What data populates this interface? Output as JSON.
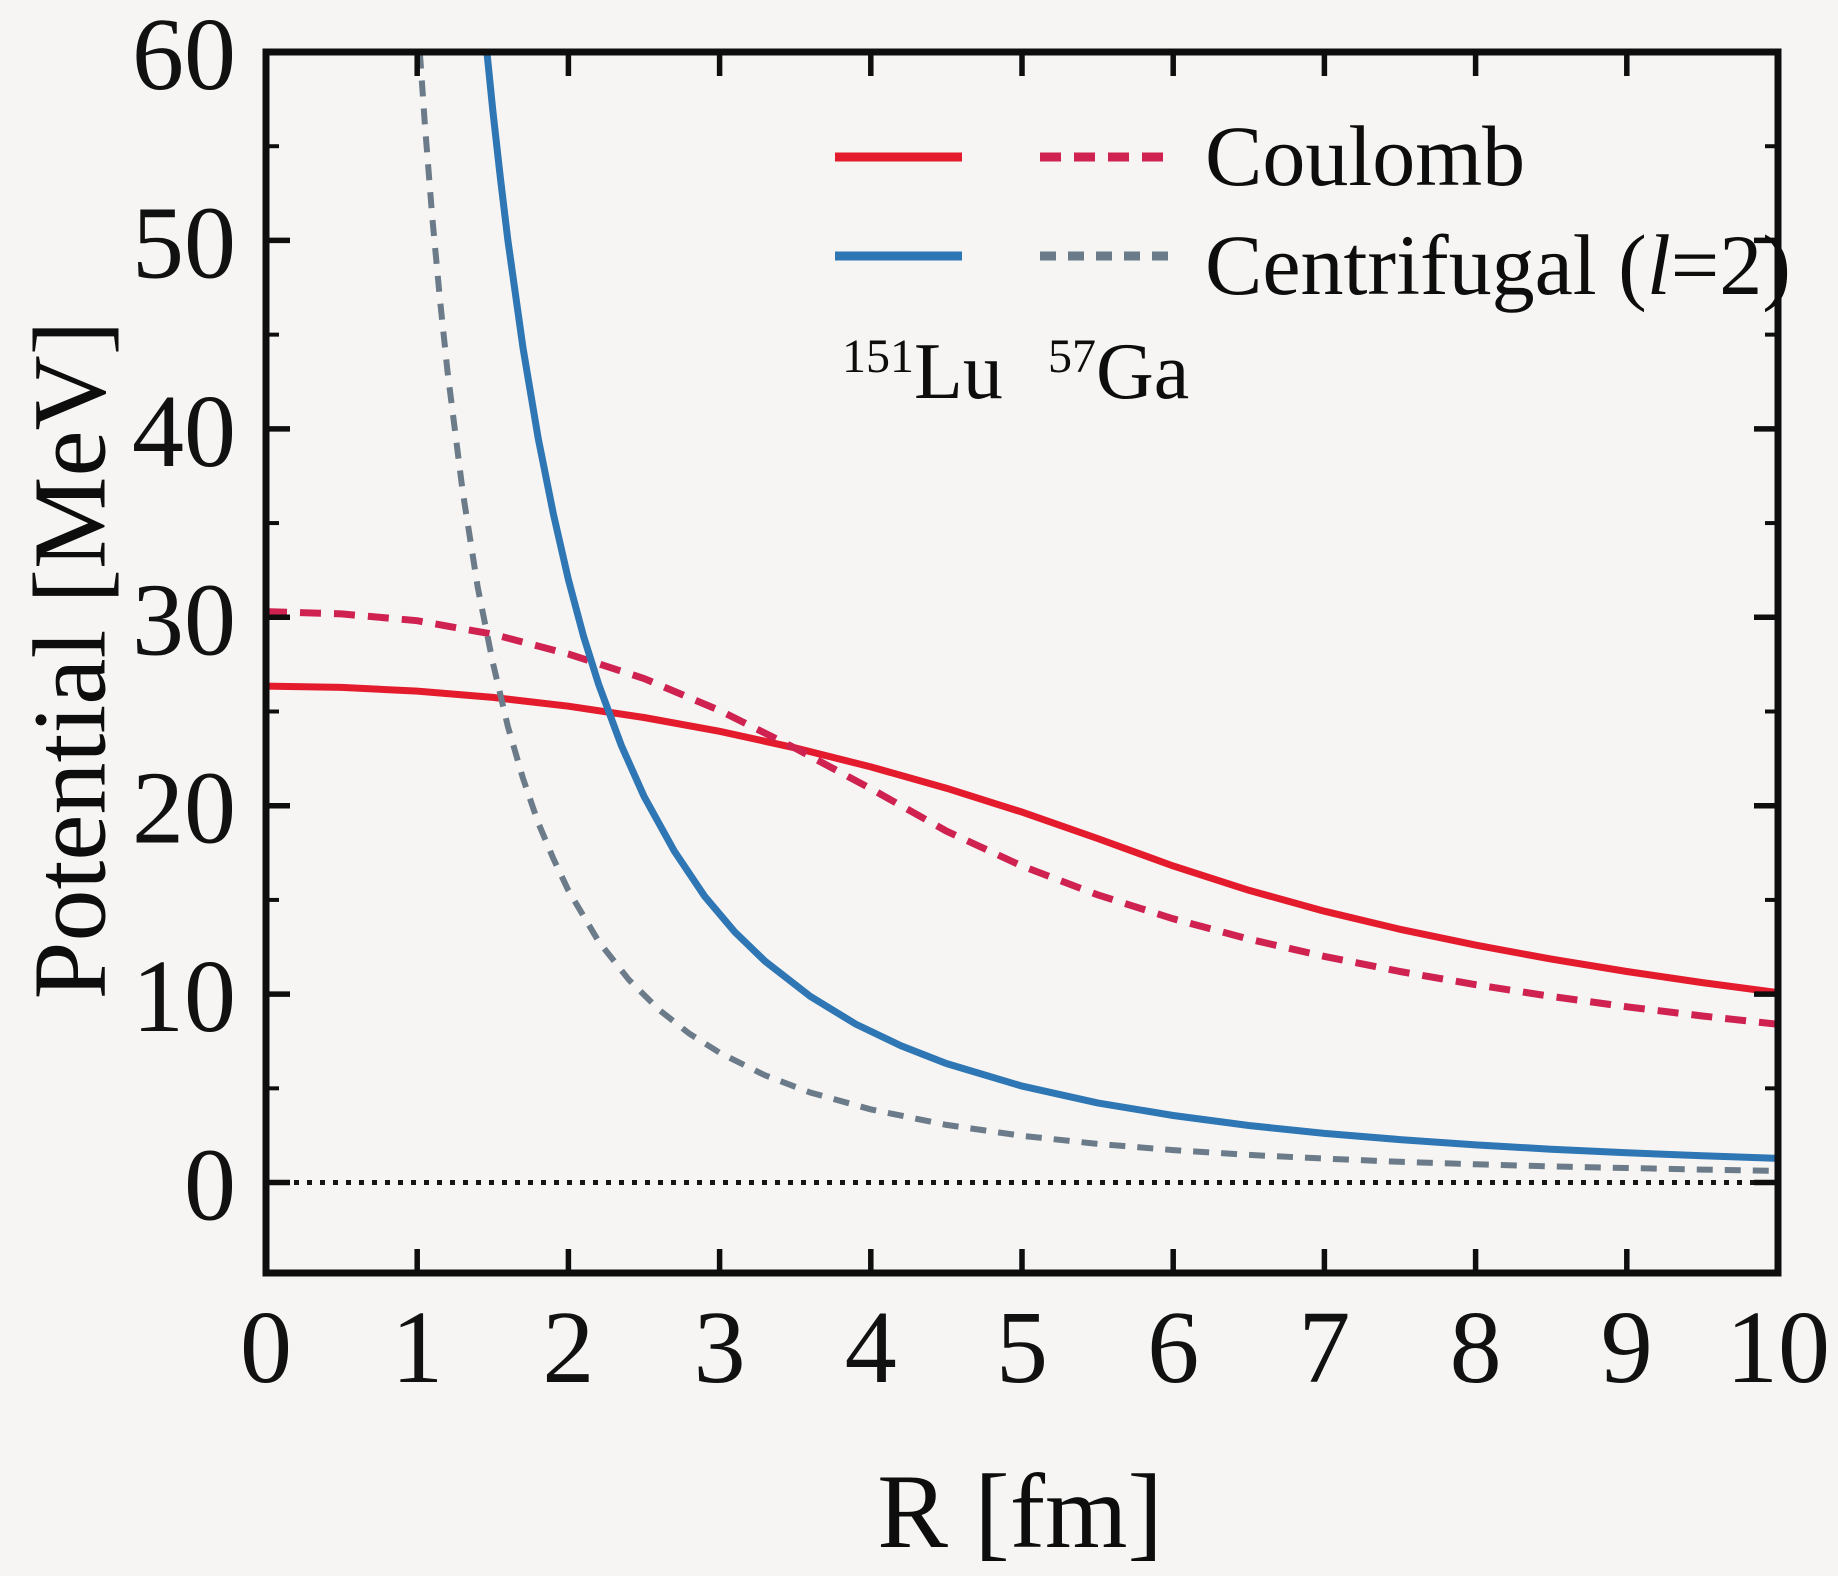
{
  "figure": {
    "background": "#f6f5f3",
    "frame_color": "#0e0e0e",
    "text_color": "#111111"
  },
  "legend": {
    "rows": [
      {
        "label": "Coulomb"
      },
      {
        "label_pre": "Centrifugal (",
        "label_italic": "l",
        "label_post": "=2)"
      }
    ],
    "columns": [
      {
        "mass": "151",
        "symbol": "Lu"
      },
      {
        "mass": "57",
        "symbol": "Ga"
      }
    ]
  },
  "chart_data": {
    "type": "line",
    "title": "",
    "xlabel": "R [fm]",
    "ylabel": "Potential [MeV]",
    "xlim": [
      0,
      10
    ],
    "ylim": [
      -4.8,
      60
    ],
    "x_ticks": [
      0,
      1,
      2,
      3,
      4,
      5,
      6,
      7,
      8,
      9,
      10
    ],
    "x_tick_labels": [
      "0",
      "1",
      "2",
      "3",
      "4",
      "5",
      "6",
      "7",
      "8",
      "9",
      "10"
    ],
    "y_ticks": [
      0,
      10,
      20,
      30,
      40,
      50,
      60
    ],
    "y_tick_labels": [
      "0",
      "10",
      "20",
      "30",
      "40",
      "50",
      "60"
    ],
    "y_minor_ticks": [
      5,
      15,
      25,
      35,
      45,
      55
    ],
    "grid": false,
    "legend_position": "top-right-inside",
    "reference_line": {
      "y": 0,
      "style": "dotted",
      "color": "#151515"
    },
    "series": [
      {
        "name": "Coulomb 151Lu",
        "group": "Coulomb",
        "isotope": "151Lu",
        "style": "solid",
        "color": "#e31b2c",
        "width": 7,
        "points": [
          [
            0,
            26.35
          ],
          [
            0.5,
            26.28
          ],
          [
            1,
            26.08
          ],
          [
            1.5,
            25.75
          ],
          [
            2,
            25.28
          ],
          [
            2.5,
            24.68
          ],
          [
            3,
            23.95
          ],
          [
            3.5,
            23.07
          ],
          [
            4,
            22.06
          ],
          [
            4.5,
            20.93
          ],
          [
            5,
            19.66
          ],
          [
            5.5,
            18.26
          ],
          [
            6,
            16.8
          ],
          [
            6.5,
            15.51
          ],
          [
            7,
            14.4
          ],
          [
            7.5,
            13.44
          ],
          [
            8,
            12.6
          ],
          [
            8.5,
            11.86
          ],
          [
            9,
            11.2
          ],
          [
            9.5,
            10.61
          ],
          [
            10,
            10.08
          ]
        ]
      },
      {
        "name": "Coulomb 57Ga",
        "group": "Coulomb",
        "isotope": "57Ga",
        "style": "dashed",
        "color": "#cf2251",
        "width": 7,
        "dash": [
          21,
          13
        ],
        "points": [
          [
            0,
            30.3
          ],
          [
            0.5,
            30.18
          ],
          [
            1,
            29.82
          ],
          [
            1.5,
            29.1
          ],
          [
            2,
            28.05
          ],
          [
            2.5,
            26.75
          ],
          [
            3,
            25.05
          ],
          [
            3.5,
            23.05
          ],
          [
            4,
            20.9
          ],
          [
            4.5,
            18.65
          ],
          [
            5,
            16.8
          ],
          [
            5.5,
            15.27
          ],
          [
            6,
            14.0
          ],
          [
            6.5,
            12.92
          ],
          [
            7,
            12.0
          ],
          [
            7.5,
            11.2
          ],
          [
            8,
            10.5
          ],
          [
            8.5,
            9.88
          ],
          [
            9,
            9.33
          ],
          [
            9.5,
            8.84
          ],
          [
            10,
            8.4
          ]
        ]
      },
      {
        "name": "Centrifugal (l=2) 151Lu",
        "group": "Centrifugal (l=2)",
        "isotope": "151Lu",
        "style": "solid",
        "color": "#2e76b4",
        "width": 7,
        "points": [
          [
            1.42,
            63.5
          ],
          [
            1.45,
            60.9
          ],
          [
            1.5,
            56.9
          ],
          [
            1.55,
            53.3
          ],
          [
            1.6,
            50.0
          ],
          [
            1.7,
            44.3
          ],
          [
            1.8,
            39.5
          ],
          [
            1.9,
            35.5
          ],
          [
            2.0,
            32.0
          ],
          [
            2.1,
            29.0
          ],
          [
            2.2,
            26.45
          ],
          [
            2.35,
            23.2
          ],
          [
            2.5,
            20.5
          ],
          [
            2.7,
            17.6
          ],
          [
            2.9,
            15.2
          ],
          [
            3.1,
            13.3
          ],
          [
            3.3,
            11.75
          ],
          [
            3.6,
            9.88
          ],
          [
            3.9,
            8.41
          ],
          [
            4.2,
            7.26
          ],
          [
            4.5,
            6.32
          ],
          [
            5,
            5.12
          ],
          [
            5.5,
            4.23
          ],
          [
            6,
            3.56
          ],
          [
            6.5,
            3.03
          ],
          [
            7,
            2.61
          ],
          [
            7.5,
            2.28
          ],
          [
            8,
            2.0
          ],
          [
            8.5,
            1.77
          ],
          [
            9,
            1.58
          ],
          [
            9.5,
            1.42
          ],
          [
            10,
            1.28
          ]
        ]
      },
      {
        "name": "Centrifugal (l=2) 57Ga",
        "group": "Centrifugal (l=2)",
        "isotope": "57Ga",
        "style": "dashed",
        "color": "#6b7b89",
        "width": 6,
        "dash": [
          16,
          12
        ],
        "points": [
          [
            0.97,
            65.9
          ],
          [
            1.0,
            62.0
          ],
          [
            1.05,
            56.2
          ],
          [
            1.1,
            51.2
          ],
          [
            1.15,
            46.9
          ],
          [
            1.2,
            43.1
          ],
          [
            1.3,
            36.7
          ],
          [
            1.4,
            31.6
          ],
          [
            1.5,
            27.6
          ],
          [
            1.6,
            24.2
          ],
          [
            1.7,
            21.45
          ],
          [
            1.8,
            19.1
          ],
          [
            1.9,
            17.2
          ],
          [
            2.0,
            15.5
          ],
          [
            2.2,
            12.8
          ],
          [
            2.4,
            10.76
          ],
          [
            2.6,
            9.17
          ],
          [
            2.8,
            7.9
          ],
          [
            3.0,
            6.89
          ],
          [
            3.3,
            5.69
          ],
          [
            3.6,
            4.78
          ],
          [
            4.0,
            3.88
          ],
          [
            4.5,
            3.06
          ],
          [
            5,
            2.48
          ],
          [
            5.5,
            2.05
          ],
          [
            6,
            1.72
          ],
          [
            6.5,
            1.47
          ],
          [
            7,
            1.27
          ],
          [
            7.5,
            1.1
          ],
          [
            8,
            0.97
          ],
          [
            8.5,
            0.86
          ],
          [
            9,
            0.77
          ],
          [
            9.5,
            0.69
          ],
          [
            10,
            0.62
          ]
        ]
      }
    ]
  }
}
